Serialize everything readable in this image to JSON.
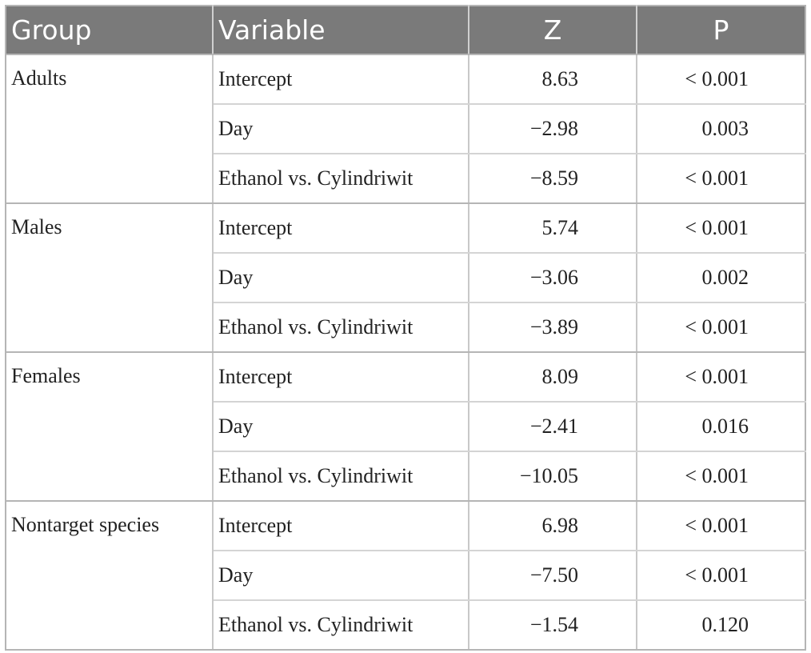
{
  "table": {
    "headers": {
      "group": "Group",
      "variable": "Variable",
      "z": "Z",
      "p": "P"
    },
    "groups": [
      {
        "name": "Adults",
        "rows": [
          {
            "variable": "Intercept",
            "z": "8.63",
            "p": "< 0.001"
          },
          {
            "variable": "Day",
            "z": "−2.98",
            "p": "0.003"
          },
          {
            "variable": "Ethanol vs. Cylindriwit",
            "z": "−8.59",
            "p": "< 0.001"
          }
        ]
      },
      {
        "name": "Males",
        "rows": [
          {
            "variable": "Intercept",
            "z": "5.74",
            "p": "< 0.001"
          },
          {
            "variable": "Day",
            "z": "−3.06",
            "p": "0.002"
          },
          {
            "variable": "Ethanol vs. Cylindriwit",
            "z": "−3.89",
            "p": "< 0.001"
          }
        ]
      },
      {
        "name": "Females",
        "rows": [
          {
            "variable": "Intercept",
            "z": "8.09",
            "p": "< 0.001"
          },
          {
            "variable": "Day",
            "z": "−2.41",
            "p": "0.016"
          },
          {
            "variable": "Ethanol vs. Cylindriwit",
            "z": "−10.05",
            "p": "< 0.001"
          }
        ]
      },
      {
        "name": "Nontarget species",
        "rows": [
          {
            "variable": "Intercept",
            "z": "6.98",
            "p": "< 0.001"
          },
          {
            "variable": "Day",
            "z": "−7.50",
            "p": "< 0.001"
          },
          {
            "variable": "Ethanol vs. Cylindriwit",
            "z": "−1.54",
            "p": "0.120"
          }
        ]
      }
    ]
  }
}
